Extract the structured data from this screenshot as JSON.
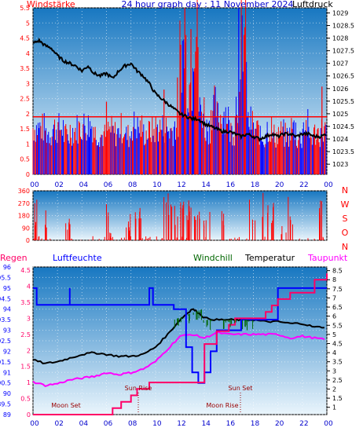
{
  "header": {
    "left_label": "Windstärke",
    "title": "24 hour graph day : 11 November 2024",
    "right_label": "Luftdruck"
  },
  "colors": {
    "bg_top": "#1a78c2",
    "bg_bottom": "#e9f4fb",
    "wind": "#ff0000",
    "wind_blue": "#0000ff",
    "pressure": "#000000",
    "temperature": "#000000",
    "windchill": "#006600",
    "humidity": "#0000ff",
    "dewpoint": "#ff00ff",
    "rain": "#ff0066",
    "sun": "#990000"
  },
  "chart_data": [
    {
      "type": "line",
      "panel": "wind-pressure",
      "title": "24 hour graph day : 11 November 2024",
      "x_ticks": [
        "00",
        "02",
        "04",
        "06",
        "08",
        "10",
        "12",
        "14",
        "16",
        "18",
        "20",
        "22",
        "00"
      ],
      "xlim": [
        0,
        24
      ],
      "y_left": {
        "label": "Windstärke",
        "ticks": [
          "0",
          "0.5",
          "1",
          "1.5",
          "2",
          "2.5",
          "3",
          "3.5",
          "4",
          "4.5",
          "5",
          "5.5"
        ],
        "ylim": [
          0,
          5.5
        ]
      },
      "y_right": {
        "label": "Luftdruck",
        "ticks": [
          "1023",
          "1023.5",
          "1024",
          "1024.5",
          "1025",
          "1025.5",
          "1026",
          "1026.5",
          "1027",
          "1027.5",
          "1028",
          "1028.5",
          "1029"
        ],
        "ylim": [
          1022.6,
          1029.2
        ]
      },
      "series": [
        {
          "name": "Luftdruck",
          "axis": "right",
          "x": [
            0,
            0.5,
            1,
            1.5,
            2,
            2.5,
            3,
            3.5,
            4,
            4.5,
            5,
            5.5,
            6,
            6.5,
            7,
            7.5,
            8,
            8.5,
            9,
            9.5,
            10,
            10.5,
            11,
            11.5,
            12,
            12.5,
            13,
            13.5,
            14,
            14.5,
            15,
            15.5,
            16,
            16.5,
            17,
            17.5,
            18,
            18.5,
            19,
            19.5,
            20,
            20.5,
            21,
            21.5,
            22,
            22.5,
            23,
            23.5,
            24
          ],
          "y": [
            1027.8,
            1027.9,
            1027.7,
            1027.6,
            1027.3,
            1027.1,
            1027.0,
            1026.9,
            1026.7,
            1026.9,
            1026.6,
            1026.5,
            1026.6,
            1026.4,
            1026.7,
            1026.9,
            1027.0,
            1026.7,
            1026.5,
            1026.2,
            1025.8,
            1025.6,
            1025.4,
            1025.2,
            1025.0,
            1024.9,
            1024.8,
            1024.8,
            1024.6,
            1024.5,
            1024.4,
            1024.3,
            1024.3,
            1024.2,
            1024.1,
            1024.2,
            1024.1,
            1024.0,
            1024.1,
            1024.2,
            1024.1,
            1024.2,
            1024.2,
            1024.1,
            1024.2,
            1024.2,
            1024.1,
            1024.1,
            1024.2
          ]
        }
      ],
      "wind_values": [
        1.8,
        1.8,
        1.6,
        1.8,
        1.8,
        1.5,
        1.7,
        1.8,
        1.9,
        1.9,
        1.6,
        1.5,
        1.7,
        1.6,
        1.8,
        1.5,
        1.9,
        1.8,
        1.6,
        1.7,
        1.8,
        1.8,
        1.7,
        1.9,
        4.8,
        3.5,
        5.5,
        2.5,
        1.8,
        2.6,
        2.2,
        2.4,
        1.7,
        2.8,
        5.4,
        2.0,
        1.7,
        1.4,
        1.8,
        1.5,
        1.6,
        1.5,
        1.8,
        1.4,
        1.9,
        1.5,
        1.6,
        1.7,
        2.9
      ],
      "gusts": [
        2.4,
        2.8,
        3.2,
        5.5,
        4.8,
        3.5,
        5.5,
        2.9
      ]
    },
    {
      "type": "bar",
      "panel": "wind-direction",
      "y_left_ticks": [
        "0",
        "90",
        "180",
        "270",
        "360"
      ],
      "ylim": [
        0,
        360
      ],
      "direction_labels": [
        "N",
        "W",
        "S",
        "O",
        "N"
      ],
      "bursts": [
        {
          "x": 0.3,
          "v": 300
        },
        {
          "x": 1.2,
          "v": 240
        },
        {
          "x": 2.8,
          "v": 160
        },
        {
          "x": 5.9,
          "v": 310
        },
        {
          "x": 6.5,
          "v": 60
        },
        {
          "x": 7.8,
          "v": 200
        },
        {
          "x": 8.6,
          "v": 240
        },
        {
          "x": 10.9,
          "v": 360
        },
        {
          "x": 11.5,
          "v": 300
        },
        {
          "x": 12.0,
          "v": 330
        },
        {
          "x": 12.5,
          "v": 350
        },
        {
          "x": 13.0,
          "v": 280
        },
        {
          "x": 13.4,
          "v": 330
        },
        {
          "x": 14.2,
          "v": 300
        },
        {
          "x": 15.5,
          "v": 260
        },
        {
          "x": 17.9,
          "v": 320
        },
        {
          "x": 18.9,
          "v": 360
        },
        {
          "x": 19.4,
          "v": 300
        },
        {
          "x": 20.5,
          "v": 120
        },
        {
          "x": 21.0,
          "v": 330
        },
        {
          "x": 23.5,
          "v": 350
        }
      ]
    },
    {
      "type": "line",
      "panel": "temperature-humidity",
      "legend": [
        "Regen",
        "Luftfeuchte",
        "Windchill",
        "Temperatur",
        "Taupunkt"
      ],
      "y_left_outer_ticks": [
        "89",
        "89.5",
        "90",
        "90.5",
        "91",
        "91.5",
        "92",
        "92.5",
        "93",
        "93.5",
        "94",
        "94.5",
        "95",
        "95.5",
        "96"
      ],
      "y_left_inner_ticks": [
        "0",
        "0.5",
        "1",
        "1.5",
        "2",
        "2.5",
        "3",
        "3.5",
        "4",
        "4.5"
      ],
      "y_right_ticks": [
        "1",
        "1.5",
        "2",
        "2.5",
        "3",
        "3.5",
        "4",
        "4.5",
        "5",
        "5.5",
        "6",
        "6.5",
        "7",
        "7.5",
        "8",
        "8.5"
      ],
      "annotations": [
        "Moon Set",
        "Sun Rise",
        "Sun Set",
        "Moon Rise"
      ],
      "series": [
        {
          "name": "Temperatur",
          "x": [
            0,
            1,
            2,
            3,
            4,
            5,
            6,
            7,
            8,
            9,
            10,
            11,
            12,
            12.5,
            13,
            13.5,
            14,
            15,
            16,
            17,
            18,
            19,
            20,
            21,
            22,
            23,
            24
          ],
          "y": [
            3.6,
            3.4,
            3.5,
            3.7,
            3.9,
            4.0,
            3.9,
            3.8,
            3.8,
            3.9,
            4.3,
            5.0,
            5.8,
            6.1,
            6.4,
            6.2,
            5.9,
            5.8,
            5.8,
            5.8,
            5.8,
            5.7,
            5.7,
            5.6,
            5.6,
            5.4,
            5.4
          ]
        },
        {
          "name": "Taupunkt",
          "x": [
            0,
            1,
            2,
            3,
            4,
            5,
            6,
            7,
            8,
            9,
            10,
            11,
            12,
            13,
            14,
            15,
            16,
            17,
            18,
            19,
            20,
            21,
            22,
            23,
            24
          ],
          "y": [
            2.4,
            2.2,
            2.3,
            2.5,
            2.6,
            2.7,
            2.9,
            2.8,
            2.9,
            3.1,
            3.5,
            4.2,
            4.9,
            5.0,
            4.8,
            5.1,
            5.0,
            5.0,
            5.0,
            5.0,
            5.0,
            4.8,
            4.9,
            4.8,
            4.7
          ]
        },
        {
          "name": "Luftfeuchte",
          "x": [
            0,
            0.3,
            0.3,
            3,
            3,
            3.3,
            3.3,
            9.5,
            9.5,
            9.8,
            9.8,
            11.5,
            11.5,
            12.5,
            12.5,
            13,
            13,
            13.5,
            13.5,
            14,
            14,
            14.5,
            14.5,
            15,
            15,
            17,
            17,
            20,
            20,
            24
          ],
          "y": [
            95,
            95,
            94.2,
            95,
            94.2,
            94.2,
            94.2,
            94.2,
            95,
            95,
            94.2,
            94.2,
            94,
            94,
            92.2,
            92.2,
            91,
            91,
            90.5,
            90.5,
            91,
            91,
            92,
            92,
            93,
            93,
            93.5,
            93.5,
            95,
            95
          ]
        },
        {
          "name": "Regen",
          "x": [
            0,
            6,
            6.5,
            7.2,
            7.2,
            8,
            8.5,
            9.5,
            13,
            14,
            14,
            15,
            15,
            16,
            16.5,
            19,
            19.5,
            20,
            21,
            23,
            23,
            24
          ],
          "y": [
            0,
            0,
            0.2,
            0.2,
            0.4,
            0.6,
            0.8,
            1.0,
            1.0,
            1.5,
            2.2,
            2.4,
            2.6,
            2.8,
            3.0,
            3.2,
            3.4,
            3.6,
            3.8,
            4.0,
            4.2,
            4.4
          ]
        }
      ]
    }
  ]
}
